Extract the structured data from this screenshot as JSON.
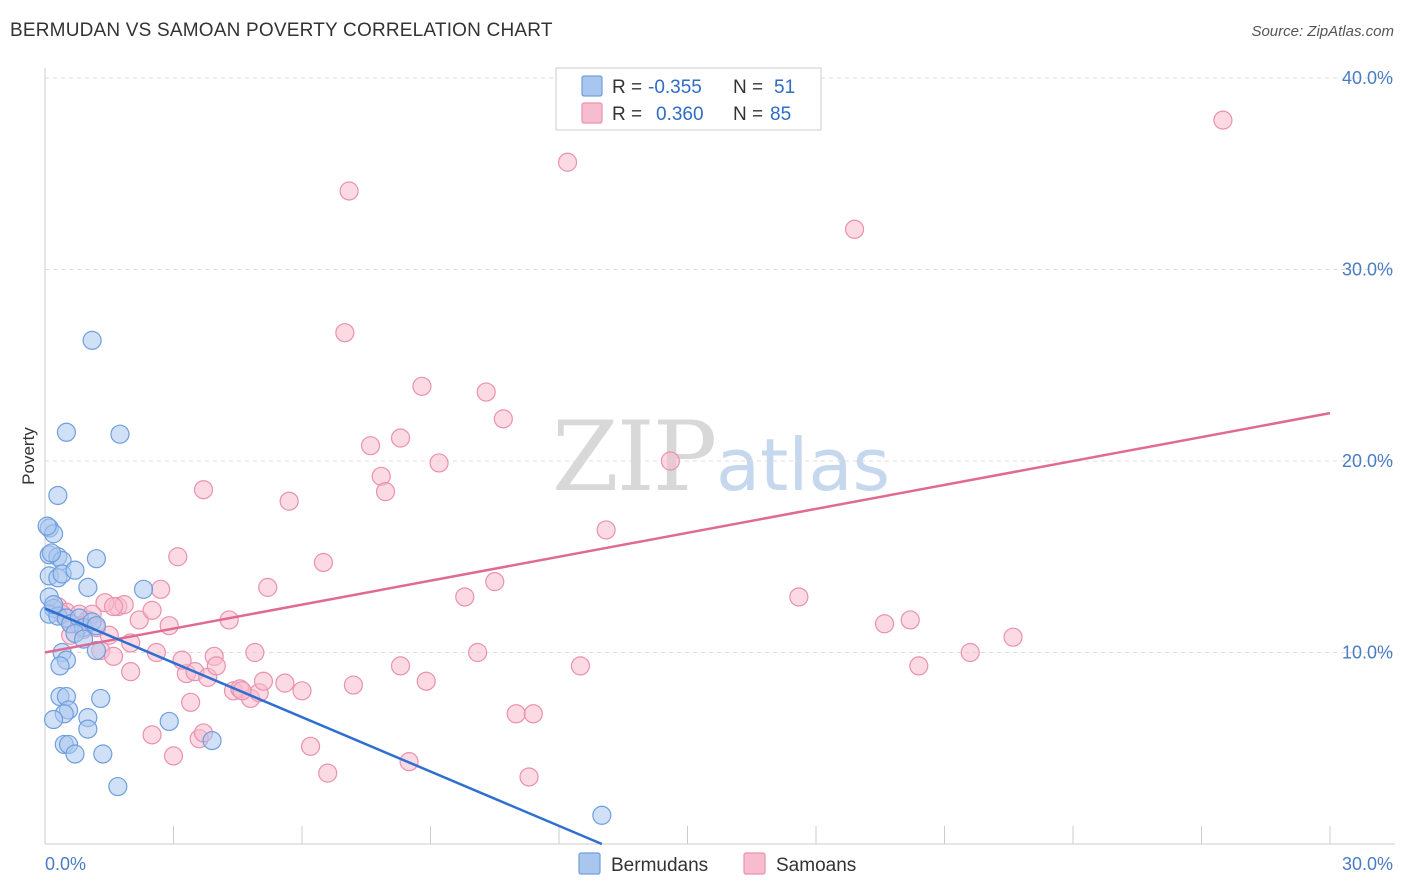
{
  "header": {
    "title": "BERMUDAN VS SAMOAN POVERTY CORRELATION CHART",
    "source": "Source: ZipAtlas.com"
  },
  "watermark": {
    "zip": "ZIP",
    "atlas": "atlas"
  },
  "legend": {
    "bermudans": {
      "r_label": "R =",
      "r_value": "-0.355",
      "n_label": "N =",
      "n_value": "51"
    },
    "samoans": {
      "r_label": "R =",
      "r_value": "0.360",
      "n_label": "N =",
      "n_value": "85"
    }
  },
  "colors": {
    "bermudans_fill": "#a9c6ee",
    "bermudans_stroke": "#6f9fde",
    "bermudans_line": "#2f6fcf",
    "samoans_fill": "#f7bccd",
    "samoans_stroke": "#ea91ae",
    "samoans_line": "#e06a93",
    "axis_label": "#4a7cc4",
    "grid": "#dddddd"
  },
  "chart_data": {
    "type": "scatter",
    "title": "BERMUDAN VS SAMOAN POVERTY CORRELATION CHART",
    "xlabel": "",
    "ylabel": "Poverty",
    "xlim": [
      0,
      30
    ],
    "ylim": [
      0,
      40
    ],
    "x_tick_labels": [
      "0.0%",
      "30.0%"
    ],
    "y_ticks": [
      10,
      20,
      30,
      40
    ],
    "y_tick_labels": [
      "10.0%",
      "20.0%",
      "30.0%",
      "40.0%"
    ],
    "grid": true,
    "legend_entries": [
      "Bermudans",
      "Samoans"
    ],
    "series": [
      {
        "name": "Bermudans",
        "trendline": {
          "x": [
            0,
            13.0
          ],
          "y": [
            12.3,
            0
          ]
        },
        "points": [
          [
            0.1,
            16.5
          ],
          [
            0.2,
            16.2
          ],
          [
            0.1,
            15.1
          ],
          [
            0.3,
            15.0
          ],
          [
            0.1,
            14.0
          ],
          [
            0.4,
            14.8
          ],
          [
            0.3,
            13.9
          ],
          [
            0.4,
            14.1
          ],
          [
            0.7,
            14.3
          ],
          [
            1.2,
            14.9
          ],
          [
            1.0,
            13.4
          ],
          [
            2.3,
            13.3
          ],
          [
            0.1,
            12.9
          ],
          [
            0.2,
            12.3
          ],
          [
            0.1,
            12.0
          ],
          [
            0.3,
            11.9
          ],
          [
            0.5,
            11.8
          ],
          [
            0.6,
            11.5
          ],
          [
            0.8,
            11.8
          ],
          [
            0.9,
            11.3
          ],
          [
            1.1,
            11.6
          ],
          [
            1.2,
            11.4
          ],
          [
            0.7,
            11.0
          ],
          [
            0.9,
            10.7
          ],
          [
            1.2,
            10.1
          ],
          [
            0.4,
            10.0
          ],
          [
            0.5,
            9.6
          ],
          [
            0.35,
            9.3
          ],
          [
            0.35,
            7.7
          ],
          [
            0.5,
            7.7
          ],
          [
            1.3,
            7.6
          ],
          [
            0.55,
            7.0
          ],
          [
            0.45,
            6.8
          ],
          [
            0.2,
            6.5
          ],
          [
            1.0,
            6.6
          ],
          [
            1.0,
            6.0
          ],
          [
            0.45,
            5.2
          ],
          [
            0.55,
            5.2
          ],
          [
            0.7,
            4.7
          ],
          [
            1.35,
            4.7
          ],
          [
            2.9,
            6.4
          ],
          [
            3.9,
            5.4
          ],
          [
            1.7,
            3.0
          ],
          [
            0.5,
            21.5
          ],
          [
            1.75,
            21.4
          ],
          [
            1.1,
            26.3
          ],
          [
            0.3,
            18.2
          ],
          [
            13.0,
            1.5
          ],
          [
            0.2,
            12.5
          ],
          [
            0.15,
            15.2
          ],
          [
            0.05,
            16.6
          ]
        ]
      },
      {
        "name": "Samoans",
        "trendline": {
          "x": [
            0,
            30
          ],
          "y": [
            10.0,
            22.5
          ]
        },
        "points": [
          [
            0.3,
            12.4
          ],
          [
            0.5,
            12.1
          ],
          [
            0.6,
            11.5
          ],
          [
            0.8,
            12.0
          ],
          [
            1.0,
            11.7
          ],
          [
            0.9,
            11.2
          ],
          [
            0.6,
            10.9
          ],
          [
            1.2,
            11.3
          ],
          [
            1.3,
            10.1
          ],
          [
            1.5,
            10.9
          ],
          [
            1.6,
            9.8
          ],
          [
            1.7,
            12.4
          ],
          [
            1.85,
            12.5
          ],
          [
            2.0,
            10.5
          ],
          [
            2.2,
            11.7
          ],
          [
            2.5,
            12.2
          ],
          [
            2.7,
            13.3
          ],
          [
            2.9,
            11.4
          ],
          [
            2.6,
            10.0
          ],
          [
            2.0,
            9.0
          ],
          [
            3.1,
            15.0
          ],
          [
            3.7,
            18.5
          ],
          [
            3.3,
            8.9
          ],
          [
            3.5,
            9.0
          ],
          [
            3.4,
            7.4
          ],
          [
            3.8,
            8.7
          ],
          [
            3.95,
            9.8
          ],
          [
            4.0,
            9.3
          ],
          [
            4.3,
            11.7
          ],
          [
            4.4,
            8.0
          ],
          [
            4.55,
            8.1
          ],
          [
            4.9,
            10.0
          ],
          [
            4.8,
            7.6
          ],
          [
            5.0,
            7.9
          ],
          [
            5.1,
            8.5
          ],
          [
            5.2,
            13.4
          ],
          [
            5.6,
            8.4
          ],
          [
            5.7,
            17.9
          ],
          [
            6.0,
            8.0
          ],
          [
            6.5,
            14.7
          ],
          [
            6.2,
            5.1
          ],
          [
            6.6,
            3.7
          ],
          [
            7.0,
            26.7
          ],
          [
            7.1,
            34.1
          ],
          [
            7.2,
            8.3
          ],
          [
            7.6,
            20.8
          ],
          [
            7.85,
            19.2
          ],
          [
            7.95,
            18.4
          ],
          [
            8.3,
            21.2
          ],
          [
            8.3,
            9.3
          ],
          [
            8.5,
            4.3
          ],
          [
            8.8,
            23.9
          ],
          [
            8.9,
            8.5
          ],
          [
            9.2,
            19.9
          ],
          [
            9.8,
            12.9
          ],
          [
            10.1,
            10.0
          ],
          [
            10.3,
            23.6
          ],
          [
            10.5,
            13.7
          ],
          [
            10.7,
            22.2
          ],
          [
            11.0,
            6.8
          ],
          [
            11.4,
            6.8
          ],
          [
            11.3,
            3.5
          ],
          [
            12.2,
            35.6
          ],
          [
            12.5,
            9.3
          ],
          [
            13.1,
            16.4
          ],
          [
            14.6,
            20.0
          ],
          [
            17.6,
            12.9
          ],
          [
            18.9,
            32.1
          ],
          [
            19.6,
            11.5
          ],
          [
            20.2,
            11.7
          ],
          [
            20.4,
            9.3
          ],
          [
            21.6,
            10.0
          ],
          [
            22.6,
            10.8
          ],
          [
            27.5,
            37.8
          ],
          [
            1.4,
            12.6
          ],
          [
            2.5,
            5.7
          ],
          [
            3.0,
            4.6
          ],
          [
            3.6,
            5.5
          ],
          [
            3.7,
            5.8
          ],
          [
            0.4,
            12.0
          ],
          [
            1.1,
            12.0
          ],
          [
            0.8,
            11.4
          ],
          [
            1.6,
            12.4
          ],
          [
            4.6,
            8.0
          ],
          [
            3.2,
            9.6
          ]
        ]
      }
    ]
  }
}
